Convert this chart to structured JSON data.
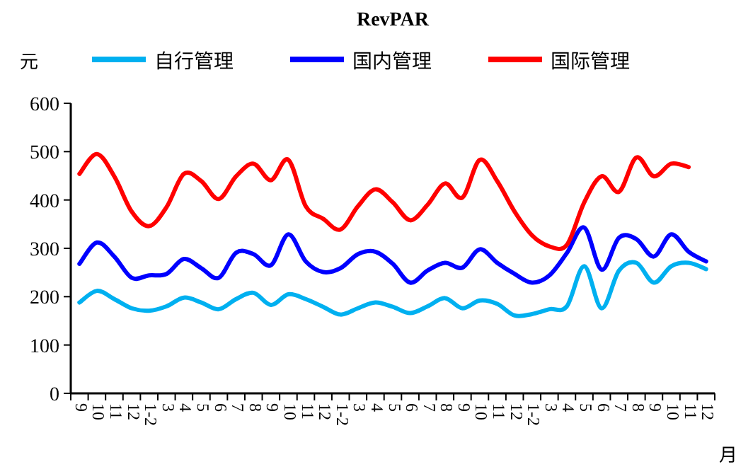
{
  "chart_data": {
    "type": "line",
    "title": "RevPAR",
    "ylabel": "元",
    "xlabel": "月",
    "categories": [
      "9",
      "10",
      "11",
      "12",
      "1-2",
      "3",
      "4",
      "5",
      "6",
      "7",
      "8",
      "9",
      "10",
      "11",
      "12",
      "1-2",
      "3",
      "4",
      "5",
      "6",
      "7",
      "8",
      "9",
      "10",
      "11",
      "12",
      "1-2",
      "3",
      "4",
      "5",
      "6",
      "7",
      "8",
      "9",
      "10",
      "11",
      "12"
    ],
    "series": [
      {
        "name": "自行管理",
        "color": "#00b0f0",
        "values": [
          188,
          212,
          195,
          176,
          171,
          180,
          198,
          188,
          174,
          195,
          208,
          183,
          205,
          195,
          179,
          163,
          176,
          188,
          179,
          166,
          180,
          197,
          176,
          192,
          185,
          161,
          164,
          174,
          180,
          263,
          176,
          254,
          270,
          229,
          263,
          270,
          257
        ]
      },
      {
        "name": "国内管理",
        "color": "#0000ff",
        "values": [
          268,
          312,
          283,
          239,
          244,
          247,
          278,
          259,
          239,
          291,
          288,
          265,
          329,
          273,
          251,
          259,
          288,
          293,
          268,
          229,
          254,
          270,
          260,
          298,
          270,
          247,
          229,
          244,
          290,
          343,
          256,
          322,
          319,
          283,
          329,
          293,
          273
        ]
      },
      {
        "name": "国际管理",
        "color": "#ff0000",
        "values": [
          454,
          495,
          449,
          376,
          346,
          385,
          454,
          439,
          402,
          449,
          475,
          441,
          483,
          387,
          361,
          339,
          387,
          422,
          395,
          358,
          390,
          434,
          405,
          483,
          439,
          376,
          327,
          304,
          307,
          395,
          449,
          417,
          488,
          449,
          475,
          468,
          null
        ]
      }
    ],
    "ylim": [
      0,
      600
    ],
    "yticks": [
      0,
      100,
      200,
      300,
      400,
      500,
      600
    ],
    "grid": false,
    "legend": "top",
    "marker": "none",
    "line_style": "solid"
  }
}
